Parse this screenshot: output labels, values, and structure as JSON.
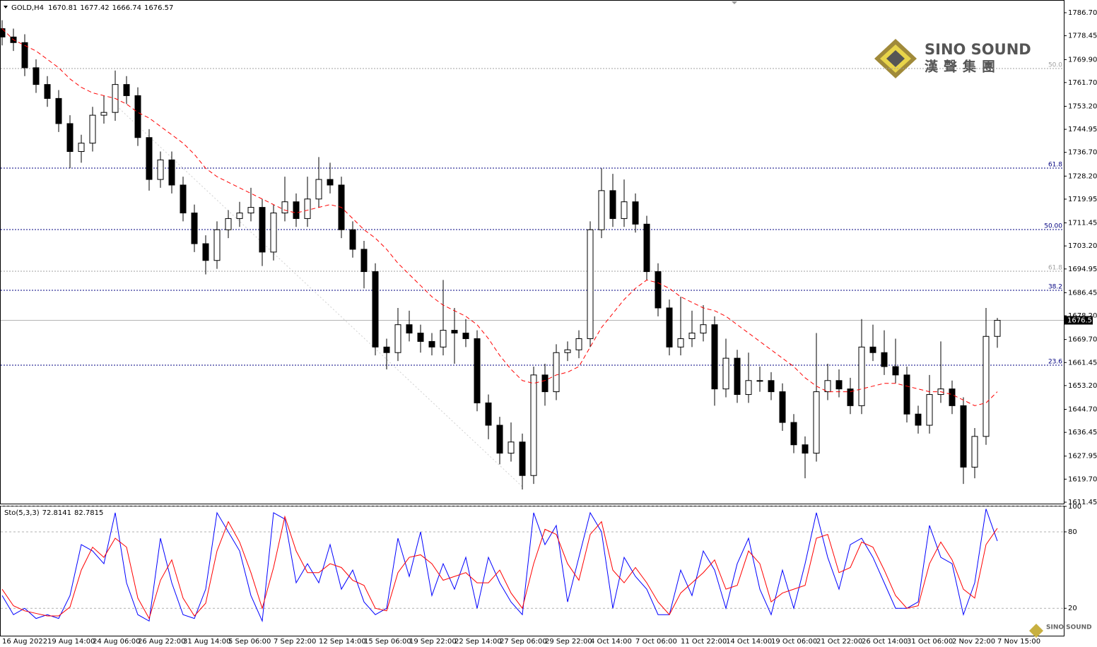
{
  "chart_data": [
    {
      "type": "candlestick",
      "symbol": "GOLD,H4",
      "categories": [
        "16 Aug 2022",
        null,
        null,
        null,
        "19 Aug 14:00",
        null,
        null,
        null,
        "24 Aug 06:00",
        null,
        null,
        null,
        "26 Aug 22:00",
        null,
        null,
        null,
        "31 Aug 14:00",
        null,
        null,
        null,
        "5 Sep 06:00",
        null,
        null,
        null,
        "7 Sep 22:00",
        null,
        null,
        null,
        "12 Sep 14:00",
        null,
        null,
        null,
        "15 Sep 06:00",
        null,
        null,
        null,
        "19 Sep 22:00",
        null,
        null,
        null,
        "22 Sep 14:00",
        null,
        null,
        null,
        "27 Sep 06:00",
        null,
        null,
        null,
        "29 Sep 22:00",
        null,
        null,
        null,
        "4 Oct 14:00",
        null,
        null,
        null,
        "7 Oct 06:00",
        null,
        null,
        null,
        "11 Oct 22:00",
        null,
        null,
        null,
        "14 Oct 14:00",
        null,
        null,
        null,
        "19 Oct 06:00",
        null,
        null,
        null,
        "21 Oct 22:00",
        null,
        null,
        null,
        "26 Oct 14:00",
        null,
        null,
        null,
        "31 Oct 06:00",
        null,
        null,
        null,
        "2 Nov 22:00",
        null,
        null,
        null,
        "7 Nov 15:00"
      ],
      "open": [
        1781,
        1778,
        1776,
        1767,
        1761,
        1756,
        1747,
        1737,
        1740,
        1750,
        1751,
        1761,
        1757,
        1742,
        1727,
        1734,
        1725,
        1715,
        1704,
        1698,
        1709,
        1713,
        1715,
        1717,
        1701,
        1715,
        1719,
        1713,
        1720,
        1727,
        1725,
        1709,
        1702,
        1694,
        1667,
        1665,
        1675,
        1672,
        1669,
        1667,
        1673,
        1672,
        1670,
        1647,
        1639,
        1629,
        1633,
        1621,
        1657,
        1651,
        1665,
        1666,
        1670,
        1709,
        1723,
        1713,
        1719,
        1711,
        1694,
        1681,
        1667,
        1670,
        1672,
        1675,
        1652,
        1663,
        1650,
        1655,
        1655,
        1651,
        1640,
        1632,
        1629,
        1651,
        1655,
        1652,
        1646,
        1667,
        1665,
        1660,
        1657,
        1643,
        1639,
        1650,
        1652,
        1646,
        1624,
        1635,
        1670.81
      ],
      "high": [
        1784,
        1781,
        1779,
        1770,
        1764,
        1759,
        1750,
        1743,
        1753,
        1757,
        1766,
        1764,
        1760,
        1745,
        1737,
        1737,
        1728,
        1718,
        1707,
        1712,
        1716,
        1719,
        1724,
        1720,
        1718,
        1728,
        1722,
        1728,
        1735,
        1733,
        1728,
        1712,
        1705,
        1697,
        1670,
        1681,
        1680,
        1675,
        1672,
        1691,
        1681,
        1677,
        1673,
        1650,
        1642,
        1640,
        1636,
        1660,
        1661,
        1668,
        1669,
        1673,
        1712,
        1731,
        1729,
        1727,
        1722,
        1714,
        1697,
        1684,
        1685,
        1680,
        1682,
        1678,
        1670,
        1666,
        1665,
        1660,
        1658,
        1654,
        1643,
        1635,
        1672,
        1661,
        1659,
        1656,
        1677,
        1675,
        1673,
        1670,
        1660,
        1646,
        1657,
        1669,
        1655,
        1649,
        1638,
        1681,
        1677.42
      ],
      "low": [
        1775,
        1773,
        1764,
        1758,
        1753,
        1744,
        1731,
        1733,
        1737,
        1747,
        1748,
        1754,
        1739,
        1723,
        1724,
        1722,
        1712,
        1701,
        1693,
        1695,
        1706,
        1710,
        1712,
        1696,
        1698,
        1712,
        1710,
        1710,
        1717,
        1722,
        1706,
        1699,
        1688,
        1664,
        1659,
        1662,
        1669,
        1665,
        1664,
        1664,
        1661,
        1667,
        1644,
        1634,
        1625,
        1626,
        1616,
        1618,
        1646,
        1648,
        1662,
        1663,
        1667,
        1706,
        1710,
        1710,
        1708,
        1691,
        1678,
        1664,
        1664,
        1667,
        1669,
        1646,
        1649,
        1647,
        1647,
        1651,
        1648,
        1637,
        1629,
        1620,
        1626,
        1648,
        1649,
        1643,
        1643,
        1662,
        1657,
        1654,
        1640,
        1636,
        1636,
        1647,
        1643,
        1618,
        1620,
        1632,
        1666.74
      ],
      "close": [
        1778,
        1776,
        1767,
        1761,
        1756,
        1747,
        1737,
        1740,
        1750,
        1751,
        1761,
        1757,
        1742,
        1727,
        1734,
        1725,
        1715,
        1704,
        1698,
        1709,
        1713,
        1715,
        1717,
        1701,
        1715,
        1719,
        1713,
        1720,
        1727,
        1725,
        1709,
        1702,
        1694,
        1667,
        1665,
        1675,
        1672,
        1669,
        1667,
        1673,
        1672,
        1670,
        1647,
        1639,
        1629,
        1633,
        1621,
        1657,
        1651,
        1665,
        1666,
        1670,
        1709,
        1723,
        1713,
        1719,
        1711,
        1694,
        1681,
        1667,
        1670,
        1672,
        1675,
        1652,
        1663,
        1650,
        1655,
        1655,
        1651,
        1640,
        1632,
        1629,
        1651,
        1655,
        1652,
        1646,
        1667,
        1665,
        1660,
        1657,
        1643,
        1639,
        1650,
        1652,
        1646,
        1624,
        1635,
        1670.81,
        1676.57
      ],
      "ma": {
        "color": "#ff0000",
        "values": [
          1781,
          1777,
          1775,
          1773,
          1770,
          1767,
          1763,
          1760,
          1758,
          1757,
          1756,
          1754,
          1751,
          1749,
          1746,
          1743,
          1740,
          1736,
          1731,
          1728,
          1726,
          1724,
          1722,
          1720,
          1718,
          1716,
          1715,
          1716,
          1717,
          1718,
          1717,
          1713,
          1709,
          1706,
          1702,
          1697,
          1693,
          1689,
          1685,
          1682,
          1680,
          1678,
          1675,
          1670,
          1664,
          1659,
          1655,
          1654,
          1655,
          1657,
          1658,
          1660,
          1667,
          1674,
          1679,
          1684,
          1688,
          1691,
          1690,
          1688,
          1685,
          1683,
          1681,
          1680,
          1678,
          1675,
          1672,
          1669,
          1666,
          1663,
          1660,
          1656,
          1653,
          1651,
          1651,
          1651,
          1652,
          1653,
          1654,
          1654,
          1653,
          1652,
          1651,
          1651,
          1650,
          1648,
          1646,
          1647,
          1651
        ]
      },
      "levels": [
        {
          "value": 1766.72,
          "label": "50.0",
          "color": "#a0a0a0"
        },
        {
          "value": 1731.06,
          "label": "61.8",
          "color": "#000080"
        },
        {
          "value": 1709.06,
          "label": "50.00",
          "color": "#000080"
        },
        {
          "value": 1694.14,
          "label": "61.8",
          "color": "#a0a0a0"
        },
        {
          "value": 1687.31,
          "label": "38.2",
          "color": "#000080"
        },
        {
          "value": 1660.5,
          "label": "23.6",
          "color": "#000080"
        }
      ],
      "ylim": [
        1610.94,
        1791.25
      ],
      "yticks": [
        {
          "value": 1786.7,
          "label": "1786.70"
        },
        1778.45,
        {
          "value": 1769.9,
          "label": "1769.90"
        },
        {
          "value": 1761.7,
          "label": "1761.70"
        },
        {
          "value": 1753.2,
          "label": "1753.20"
        },
        1744.95,
        {
          "value": 1736.7,
          "label": "1736.70"
        },
        {
          "value": 1728.2,
          "label": "1728.20"
        },
        1719.95,
        1711.45,
        {
          "value": 1703.2,
          "label": "1703.20"
        },
        1694.95,
        1686.45,
        {
          "value": 1678.2,
          "label": "1678.20"
        },
        {
          "value": 1669.7,
          "label": "1669.70"
        },
        1661.45,
        {
          "value": 1653.2,
          "label": "1653.20"
        },
        {
          "value": 1644.7,
          "label": "1644.70"
        },
        1636.45,
        1627.95,
        {
          "value": 1619.7,
          "label": "1619.70"
        },
        1611.45
      ],
      "color_up": "#ffffff",
      "color_down": "#000000"
    },
    {
      "type": "stochastic",
      "title": "Sto(5,3,3)",
      "series": [
        {
          "color": "#0000ff",
          "values": [
            30,
            15,
            20,
            12,
            15,
            12,
            30,
            70,
            65,
            55,
            95,
            40,
            15,
            10,
            75,
            40,
            15,
            12,
            35,
            95,
            80,
            65,
            30,
            10,
            95,
            90,
            40,
            55,
            40,
            70,
            35,
            50,
            25,
            15,
            20,
            75,
            45,
            80,
            30,
            55,
            35,
            60,
            20,
            60,
            40,
            25,
            15,
            95,
            70,
            85,
            25,
            60,
            95,
            80,
            20,
            60,
            45,
            35,
            15,
            15,
            50,
            30,
            65,
            50,
            20,
            55,
            75,
            35,
            15,
            50,
            20,
            55,
            95,
            60,
            35,
            70,
            75,
            60,
            40,
            20,
            20,
            25,
            85,
            60,
            55,
            15,
            40,
            98,
            72.8141
          ]
        },
        {
          "color": "#ff0000",
          "values": [
            35,
            22,
            18,
            16,
            14,
            14,
            21,
            50,
            68,
            60,
            75,
            68,
            28,
            12,
            42,
            58,
            28,
            14,
            24,
            65,
            88,
            72,
            48,
            20,
            52,
            92,
            65,
            48,
            48,
            55,
            52,
            42,
            38,
            20,
            18,
            48,
            60,
            62,
            55,
            42,
            45,
            48,
            40,
            40,
            50,
            32,
            20,
            55,
            82,
            78,
            55,
            42,
            78,
            88,
            50,
            40,
            52,
            40,
            25,
            15,
            32,
            40,
            48,
            58,
            35,
            38,
            65,
            55,
            25,
            32,
            35,
            38,
            75,
            78,
            48,
            52,
            72,
            68,
            50,
            30,
            20,
            22,
            55,
            72,
            58,
            35,
            28,
            70,
            82.7815
          ]
        }
      ],
      "ylim": [
        -1.5,
        100.5
      ],
      "yticks": [
        20,
        80,
        100
      ]
    }
  ],
  "logo": {
    "name": "SINO SOUND",
    "chinese": "漢聲集團"
  }
}
